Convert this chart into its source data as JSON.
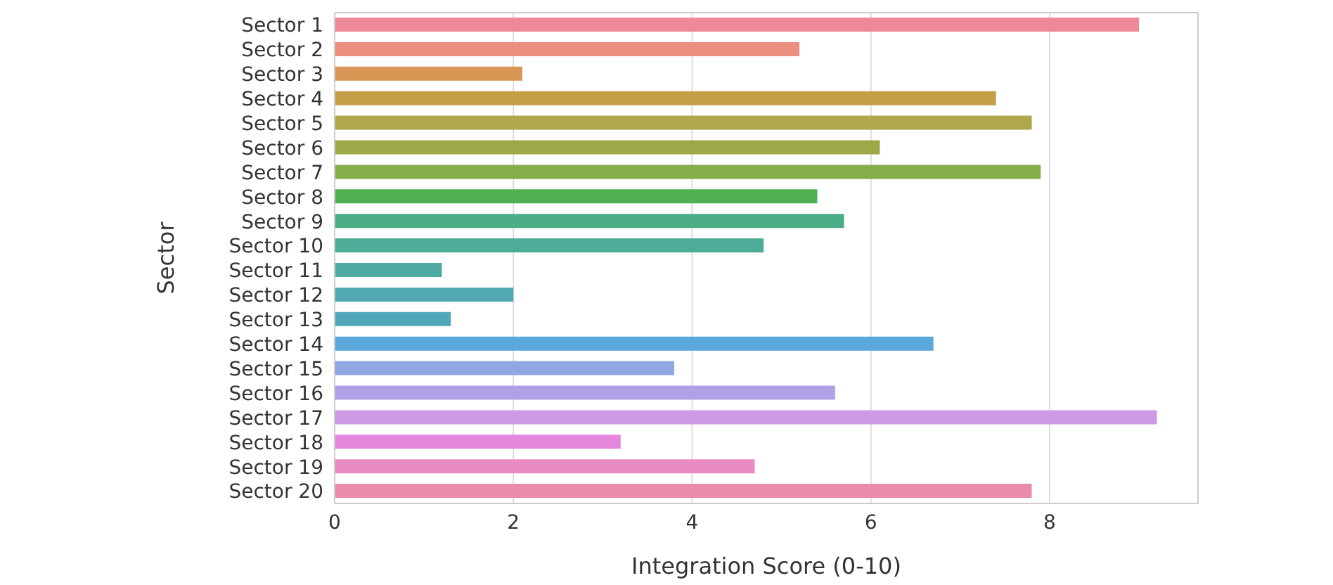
{
  "chart_data": {
    "type": "bar",
    "orientation": "horizontal",
    "xlabel": "Integration Score (0-10)",
    "ylabel": "Sector",
    "categories": [
      "Sector 1",
      "Sector 2",
      "Sector 3",
      "Sector 4",
      "Sector 5",
      "Sector 6",
      "Sector 7",
      "Sector 8",
      "Sector 9",
      "Sector 10",
      "Sector 11",
      "Sector 12",
      "Sector 13",
      "Sector 14",
      "Sector 15",
      "Sector 16",
      "Sector 17",
      "Sector 18",
      "Sector 19",
      "Sector 20"
    ],
    "values": [
      9.0,
      5.2,
      2.1,
      7.4,
      7.8,
      6.1,
      7.9,
      5.4,
      5.7,
      4.8,
      1.2,
      2.0,
      1.3,
      6.7,
      3.8,
      5.6,
      9.2,
      3.2,
      4.7,
      7.8
    ],
    "colors": [
      "#ee8a98",
      "#eb9081",
      "#d99553",
      "#c59e48",
      "#b0a64a",
      "#9ea849",
      "#85ad4a",
      "#4fb052",
      "#4bae86",
      "#4dac98",
      "#4faaa6",
      "#50a9b0",
      "#52a8ba",
      "#59a8d9",
      "#8fa7e3",
      "#b0a1e6",
      "#cf9ae5",
      "#e588dd",
      "#e88bc3",
      "#eb8aab"
    ],
    "xlim": [
      0,
      9.66
    ],
    "xticks": [
      0,
      2,
      4,
      6,
      8
    ],
    "grid": "x",
    "legend": false
  }
}
